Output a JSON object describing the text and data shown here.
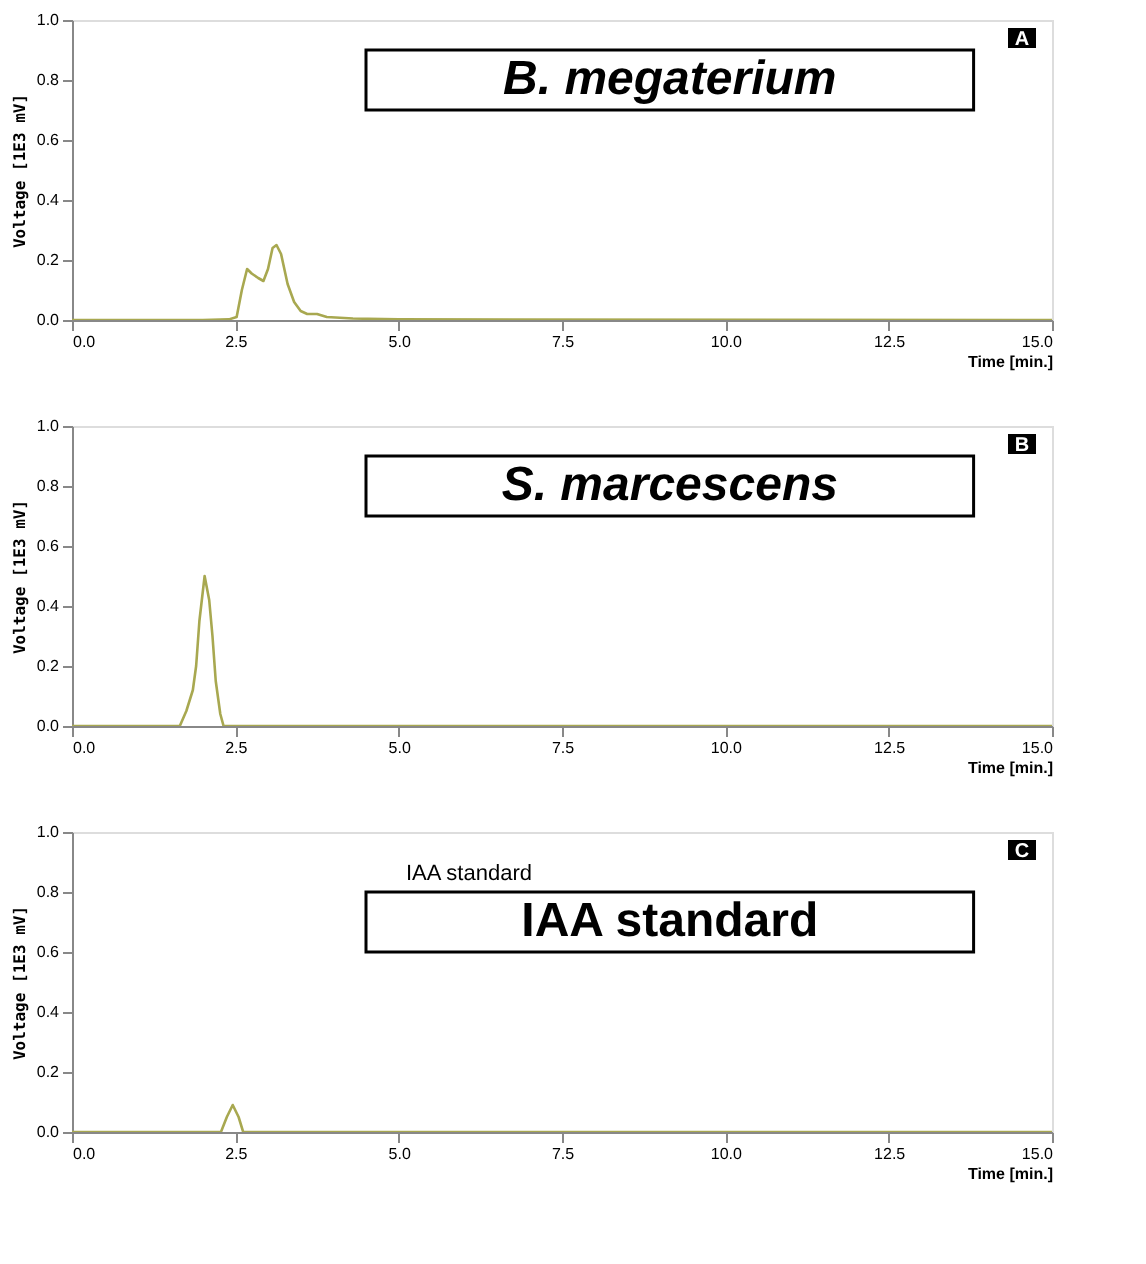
{
  "chart_data": [
    {
      "type": "line",
      "title": "B. megaterium",
      "annotations": [
        "A"
      ],
      "ylabel": "Voltage [1E3 mV]",
      "xlabel": "Time [min.]",
      "x": [
        0,
        2.0,
        2.4,
        2.52,
        2.6,
        2.68,
        2.75,
        2.85,
        2.93,
        3.0,
        3.07,
        3.13,
        3.2,
        3.3,
        3.4,
        3.5,
        3.6,
        3.75,
        3.9,
        4.3,
        5.0,
        15
      ],
      "series": [
        {
          "color": "#a8a850",
          "values": [
            0,
            0,
            0.002,
            0.01,
            0.1,
            0.17,
            0.155,
            0.14,
            0.13,
            0.17,
            0.24,
            0.25,
            0.22,
            0.12,
            0.06,
            0.03,
            0.02,
            0.02,
            0.01,
            0.005,
            0.002,
            0
          ]
        }
      ],
      "xlim": [
        0,
        15
      ],
      "ylim": [
        0,
        1
      ],
      "xticks": [
        {
          "value": 0,
          "label": "0.0"
        },
        {
          "value": 2.5,
          "label": "2.5"
        },
        {
          "value": 5,
          "label": "5.0"
        },
        {
          "value": 7.5,
          "label": "7.5"
        },
        {
          "value": 10,
          "label": "10.0"
        },
        {
          "value": 12.5,
          "label": "12.5"
        },
        {
          "value": 15,
          "label": "15.0"
        }
      ],
      "yticks": [
        {
          "value": 0,
          "label": "0.0"
        },
        {
          "value": 0.2,
          "label": "0.2"
        },
        {
          "value": 0.4,
          "label": "0.4"
        },
        {
          "value": 0.6,
          "label": "0.6"
        },
        {
          "value": 0.8,
          "label": "0.8"
        },
        {
          "value": 1,
          "label": "1.0"
        }
      ],
      "grid": false
    },
    {
      "type": "line",
      "title": "S. marcescens",
      "annotations": [
        "B"
      ],
      "ylabel": "Voltage [1E3 mV]",
      "xlabel": "Time [min.]",
      "x": [
        0,
        1.65,
        1.75,
        1.85,
        1.9,
        1.95,
        2.03,
        2.1,
        2.15,
        2.2,
        2.27,
        2.32,
        15
      ],
      "series": [
        {
          "color": "#a8a850",
          "values": [
            0,
            0,
            0.05,
            0.12,
            0.2,
            0.35,
            0.5,
            0.42,
            0.3,
            0.15,
            0.04,
            0,
            0
          ]
        }
      ],
      "xlim": [
        0,
        15
      ],
      "ylim": [
        0,
        1
      ],
      "xticks": [
        {
          "value": 0,
          "label": "0.0"
        },
        {
          "value": 2.5,
          "label": "2.5"
        },
        {
          "value": 5,
          "label": "5.0"
        },
        {
          "value": 7.5,
          "label": "7.5"
        },
        {
          "value": 10,
          "label": "10.0"
        },
        {
          "value": 12.5,
          "label": "12.5"
        },
        {
          "value": 15,
          "label": "15.0"
        }
      ],
      "yticks": [
        {
          "value": 0,
          "label": "0.0"
        },
        {
          "value": 0.2,
          "label": "0.2"
        },
        {
          "value": 0.4,
          "label": "0.4"
        },
        {
          "value": 0.6,
          "label": "0.6"
        },
        {
          "value": 0.8,
          "label": "0.8"
        },
        {
          "value": 1,
          "label": "1.0"
        }
      ],
      "grid": false
    },
    {
      "type": "line",
      "title": "IAA standard",
      "annotations": [
        "IAA standard",
        "C"
      ],
      "ylabel": "Voltage [1E3 mV]",
      "xlabel": "Time [min.]",
      "x": [
        0,
        2.28,
        2.37,
        2.46,
        2.55,
        2.62,
        15
      ],
      "series": [
        {
          "color": "#a8a850",
          "values": [
            0,
            0,
            0.05,
            0.09,
            0.05,
            0,
            0
          ]
        }
      ],
      "xlim": [
        0,
        15
      ],
      "ylim": [
        0,
        1
      ],
      "xticks": [
        {
          "value": 0,
          "label": "0.0"
        },
        {
          "value": 2.5,
          "label": "2.5"
        },
        {
          "value": 5,
          "label": "5.0"
        },
        {
          "value": 7.5,
          "label": "7.5"
        },
        {
          "value": 10,
          "label": "10.0"
        },
        {
          "value": 12.5,
          "label": "12.5"
        },
        {
          "value": 15,
          "label": "15.0"
        }
      ],
      "yticks": [
        {
          "value": 0,
          "label": "0.0"
        },
        {
          "value": 0.2,
          "label": "0.2"
        },
        {
          "value": 0.4,
          "label": "0.4"
        },
        {
          "value": 0.6,
          "label": "0.6"
        },
        {
          "value": 0.8,
          "label": "0.8"
        },
        {
          "value": 1,
          "label": "1.0"
        }
      ],
      "grid": false
    }
  ]
}
